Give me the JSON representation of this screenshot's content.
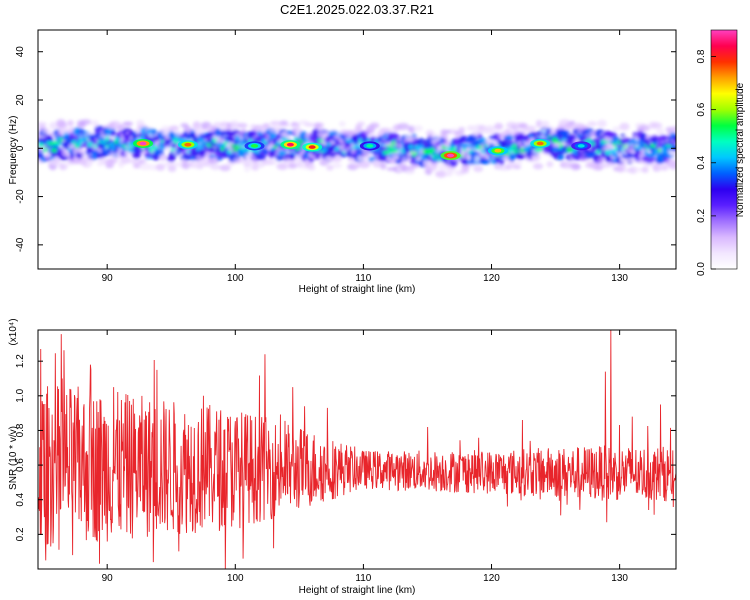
{
  "title": "C2E1.2025.022.03.37.R21",
  "colors": {
    "snr_line": "#e8252b",
    "axis": "#000000",
    "colormap": [
      "#ffffff",
      "#f2e6ff",
      "#d9b8ff",
      "#a070ff",
      "#5a20ff",
      "#2d00f0",
      "#0060ff",
      "#00c8ff",
      "#00ffc0",
      "#00ff40",
      "#a0ff00",
      "#ffff00",
      "#ffa000",
      "#ff3000",
      "#ff0050",
      "#ff40c0"
    ]
  },
  "chart_data": [
    {
      "type": "heatmap",
      "xlabel": "Height of straight line (km)",
      "ylabel": "Frequency (Hz)",
      "xlim": [
        84.6,
        134.4
      ],
      "ylim": [
        -50,
        49
      ],
      "xticks": [
        90,
        100,
        110,
        120,
        130
      ],
      "yticks": [
        -40,
        -20,
        0,
        20,
        40
      ],
      "xtick_labels": [
        "90",
        "100",
        "110",
        "120",
        "130"
      ],
      "ytick_labels": [
        "-40",
        "-20",
        "0",
        "20",
        "40"
      ],
      "band": {
        "center_freq_hz": [
          {
            "x": 85,
            "y": 1
          },
          {
            "x": 88,
            "y": 2
          },
          {
            "x": 92,
            "y": 2
          },
          {
            "x": 95,
            "y": 1
          },
          {
            "x": 100,
            "y": 1
          },
          {
            "x": 104,
            "y": 1.5
          },
          {
            "x": 108,
            "y": 1
          },
          {
            "x": 112,
            "y": 0.5
          },
          {
            "x": 116,
            "y": -2
          },
          {
            "x": 118,
            "y": -1
          },
          {
            "x": 121,
            "y": 0
          },
          {
            "x": 124,
            "y": 2
          },
          {
            "x": 128,
            "y": 1
          },
          {
            "x": 131,
            "y": 0
          },
          {
            "x": 134,
            "y": 1
          }
        ],
        "half_width_hz": 7,
        "peaks": [
          {
            "x": 92.8,
            "y": 2,
            "amplitude": 0.9
          },
          {
            "x": 96.3,
            "y": 1.5,
            "amplitude": 0.75
          },
          {
            "x": 104.3,
            "y": 1.5,
            "amplitude": 0.85
          },
          {
            "x": 106.0,
            "y": 0.5,
            "amplitude": 0.8
          },
          {
            "x": 116.8,
            "y": -3,
            "amplitude": 0.95
          },
          {
            "x": 120.5,
            "y": -1,
            "amplitude": 0.7
          },
          {
            "x": 123.8,
            "y": 2,
            "amplitude": 0.75
          },
          {
            "x": 101.5,
            "y": 1,
            "amplitude": 0.55
          },
          {
            "x": 110.5,
            "y": 1,
            "amplitude": 0.5
          },
          {
            "x": 127.0,
            "y": 1,
            "amplitude": 0.45
          }
        ]
      },
      "colorbar": {
        "label": "Normalized spectral amplitude",
        "range": [
          0,
          0.9
        ],
        "ticks": [
          0.0,
          0.2,
          0.4,
          0.6,
          0.8
        ],
        "tick_labels": [
          "0.0",
          "0.2",
          "0.4",
          "0.6",
          "0.8"
        ]
      }
    },
    {
      "type": "line",
      "xlabel": "Height of straight line (km)",
      "ylabel": "SNR (10 * v/v)",
      "y_multiplier": "(x10⁴)",
      "xlim": [
        84.6,
        134.4
      ],
      "ylim": [
        0,
        1.38
      ],
      "xticks": [
        90,
        100,
        110,
        120,
        130
      ],
      "yticks": [
        0.2,
        0.4,
        0.6,
        0.8,
        1.0,
        1.2
      ],
      "xtick_labels": [
        "90",
        "100",
        "110",
        "120",
        "130"
      ],
      "ytick_labels": [
        "0.2",
        "0.4",
        "0.6",
        "0.8",
        "1.0",
        "1.2"
      ],
      "series": [
        {
          "baseline": [
            {
              "x": 85,
              "y": 0.6
            },
            {
              "x": 100,
              "y": 0.58
            },
            {
              "x": 108,
              "y": 0.58
            },
            {
              "x": 112,
              "y": 0.57
            },
            {
              "x": 120,
              "y": 0.56
            },
            {
              "x": 134,
              "y": 0.55
            }
          ],
          "spread": [
            {
              "x": 85,
              "y": 0.3
            },
            {
              "x": 100,
              "y": 0.22
            },
            {
              "x": 106,
              "y": 0.14
            },
            {
              "x": 110,
              "y": 0.07
            },
            {
              "x": 120,
              "y": 0.08
            },
            {
              "x": 128,
              "y": 0.1
            },
            {
              "x": 134,
              "y": 0.1
            }
          ],
          "spikes": [
            {
              "x": 84.8,
              "y": 1.27
            },
            {
              "x": 86.5,
              "y": 1.1
            },
            {
              "x": 88.7,
              "y": 1.18
            },
            {
              "x": 90.5,
              "y": 1.05
            },
            {
              "x": 93.9,
              "y": 1.15
            },
            {
              "x": 97.5,
              "y": 1.0
            },
            {
              "x": 100.6,
              "y": 1.03
            },
            {
              "x": 102.3,
              "y": 1.24
            },
            {
              "x": 104.5,
              "y": 1.05
            },
            {
              "x": 107.2,
              "y": 0.93
            },
            {
              "x": 115.0,
              "y": 0.82
            },
            {
              "x": 122.4,
              "y": 0.86
            },
            {
              "x": 128.9,
              "y": 1.14
            },
            {
              "x": 129.3,
              "y": 1.38
            },
            {
              "x": 131.0,
              "y": 0.88
            },
            {
              "x": 133.2,
              "y": 0.95
            }
          ],
          "dips": [
            {
              "x": 85.2,
              "y": 0.05
            },
            {
              "x": 87.3,
              "y": 0.08
            },
            {
              "x": 89.4,
              "y": 0.03
            },
            {
              "x": 93.6,
              "y": 0.04
            },
            {
              "x": 100.6,
              "y": 0.06
            },
            {
              "x": 103.0,
              "y": 0.12
            },
            {
              "x": 129.0,
              "y": 0.27
            }
          ]
        }
      ]
    }
  ]
}
